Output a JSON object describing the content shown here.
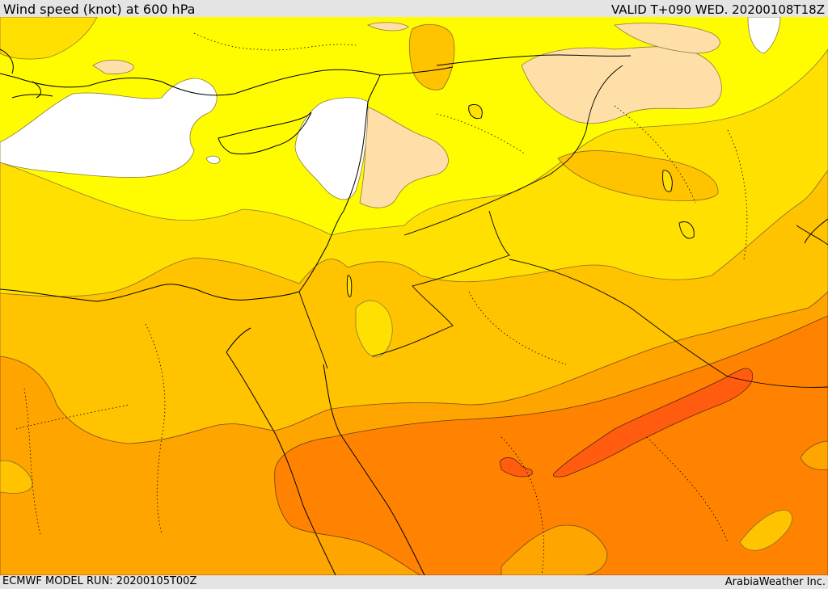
{
  "header": {
    "title": "Wind speed (knot) at 600 hPa",
    "valid_time": "VALID T+090 WED. 20200108T18Z"
  },
  "footer": {
    "model_run": "ECMWF MODEL RUN: 20200105T00Z",
    "credit": "ArabiaWeather Inc."
  },
  "map": {
    "region": "Eastern Mediterranean / Middle East",
    "field": "Wind speed at 600 hPa",
    "colors": {
      "calm_white": "#ffffff",
      "band_1": "#ffdfa8",
      "band_2": "#fffc00",
      "band_3": "#ffe000",
      "band_4": "#ffc300",
      "band_5": "#ffa500",
      "band_6": "#ff8300",
      "band_7": "#ff5c10"
    }
  }
}
